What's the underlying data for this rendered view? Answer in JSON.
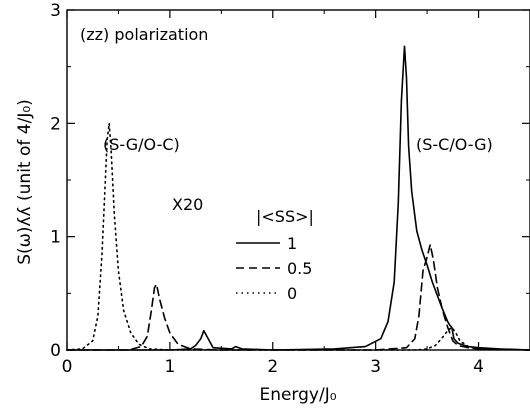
{
  "chart_data": {
    "type": "line",
    "title": "",
    "xlabel": "Energy/J₀",
    "ylabel": "S(ω)ʎʎ (unit of 4/J₀)",
    "xlim": [
      0,
      4.5
    ],
    "ylim": [
      0,
      3
    ],
    "x_ticks": [
      "0",
      "1",
      "2",
      "3",
      "4"
    ],
    "y_ticks": [
      "0",
      "1",
      "2",
      "3"
    ],
    "grid": false,
    "legend": {
      "title": "|<SS>|",
      "placement": "center",
      "entries": [
        "1",
        "0.5",
        "0"
      ]
    },
    "annotations": {
      "polarization": "(zz) polarization",
      "low_band": "(S-G/O-C)",
      "high_band": "(S-C/O-G)",
      "scale": "X20"
    },
    "series": [
      {
        "name": "1",
        "style": "solid",
        "x": [
          0.0,
          0.5,
          1.0,
          1.2,
          1.25,
          1.3,
          1.33,
          1.36,
          1.42,
          1.6,
          1.64,
          1.7,
          2.0,
          2.6,
          2.9,
          3.05,
          3.12,
          3.18,
          3.22,
          3.25,
          3.28,
          3.3,
          3.32,
          3.35,
          3.4,
          3.45,
          3.5,
          3.55,
          3.6,
          3.65,
          3.7,
          3.72,
          3.74,
          3.76,
          3.8,
          3.9,
          4.0,
          4.2,
          4.5
        ],
        "y": [
          0.0,
          0.0,
          0.0,
          0.01,
          0.04,
          0.1,
          0.17,
          0.12,
          0.02,
          0.01,
          0.03,
          0.01,
          0.0,
          0.01,
          0.03,
          0.1,
          0.25,
          0.6,
          1.3,
          2.2,
          2.68,
          2.4,
          1.8,
          1.4,
          1.05,
          0.88,
          0.75,
          0.6,
          0.48,
          0.36,
          0.25,
          0.22,
          0.2,
          0.1,
          0.06,
          0.03,
          0.02,
          0.01,
          0.0
        ]
      },
      {
        "name": "0.5",
        "style": "dashed",
        "x": [
          0.0,
          0.6,
          0.72,
          0.78,
          0.82,
          0.85,
          0.87,
          0.9,
          0.95,
          1.0,
          1.08,
          1.2,
          1.5,
          3.0,
          3.3,
          3.38,
          3.42,
          3.46,
          3.5,
          3.53,
          3.56,
          3.6,
          3.65,
          3.7,
          3.75,
          3.8,
          3.9,
          4.0,
          4.5
        ],
        "y": [
          0.0,
          0.0,
          0.03,
          0.12,
          0.35,
          0.55,
          0.58,
          0.45,
          0.28,
          0.15,
          0.05,
          0.01,
          0.0,
          0.0,
          0.02,
          0.1,
          0.3,
          0.7,
          0.82,
          0.93,
          0.8,
          0.55,
          0.35,
          0.2,
          0.08,
          0.04,
          0.02,
          0.01,
          0.0
        ]
      },
      {
        "name": "0",
        "style": "dotted",
        "x": [
          0.0,
          0.15,
          0.25,
          0.3,
          0.34,
          0.37,
          0.39,
          0.41,
          0.43,
          0.46,
          0.5,
          0.55,
          0.62,
          0.7,
          0.8,
          1.0,
          3.4,
          3.5,
          3.58,
          3.64,
          3.7,
          3.74,
          3.78,
          3.82,
          3.9,
          4.0,
          4.5
        ],
        "y": [
          0.0,
          0.01,
          0.08,
          0.3,
          0.85,
          1.45,
          1.85,
          2.0,
          1.75,
          1.2,
          0.7,
          0.35,
          0.15,
          0.05,
          0.01,
          0.0,
          0.0,
          0.01,
          0.04,
          0.1,
          0.17,
          0.2,
          0.15,
          0.08,
          0.03,
          0.01,
          0.0
        ]
      }
    ]
  }
}
